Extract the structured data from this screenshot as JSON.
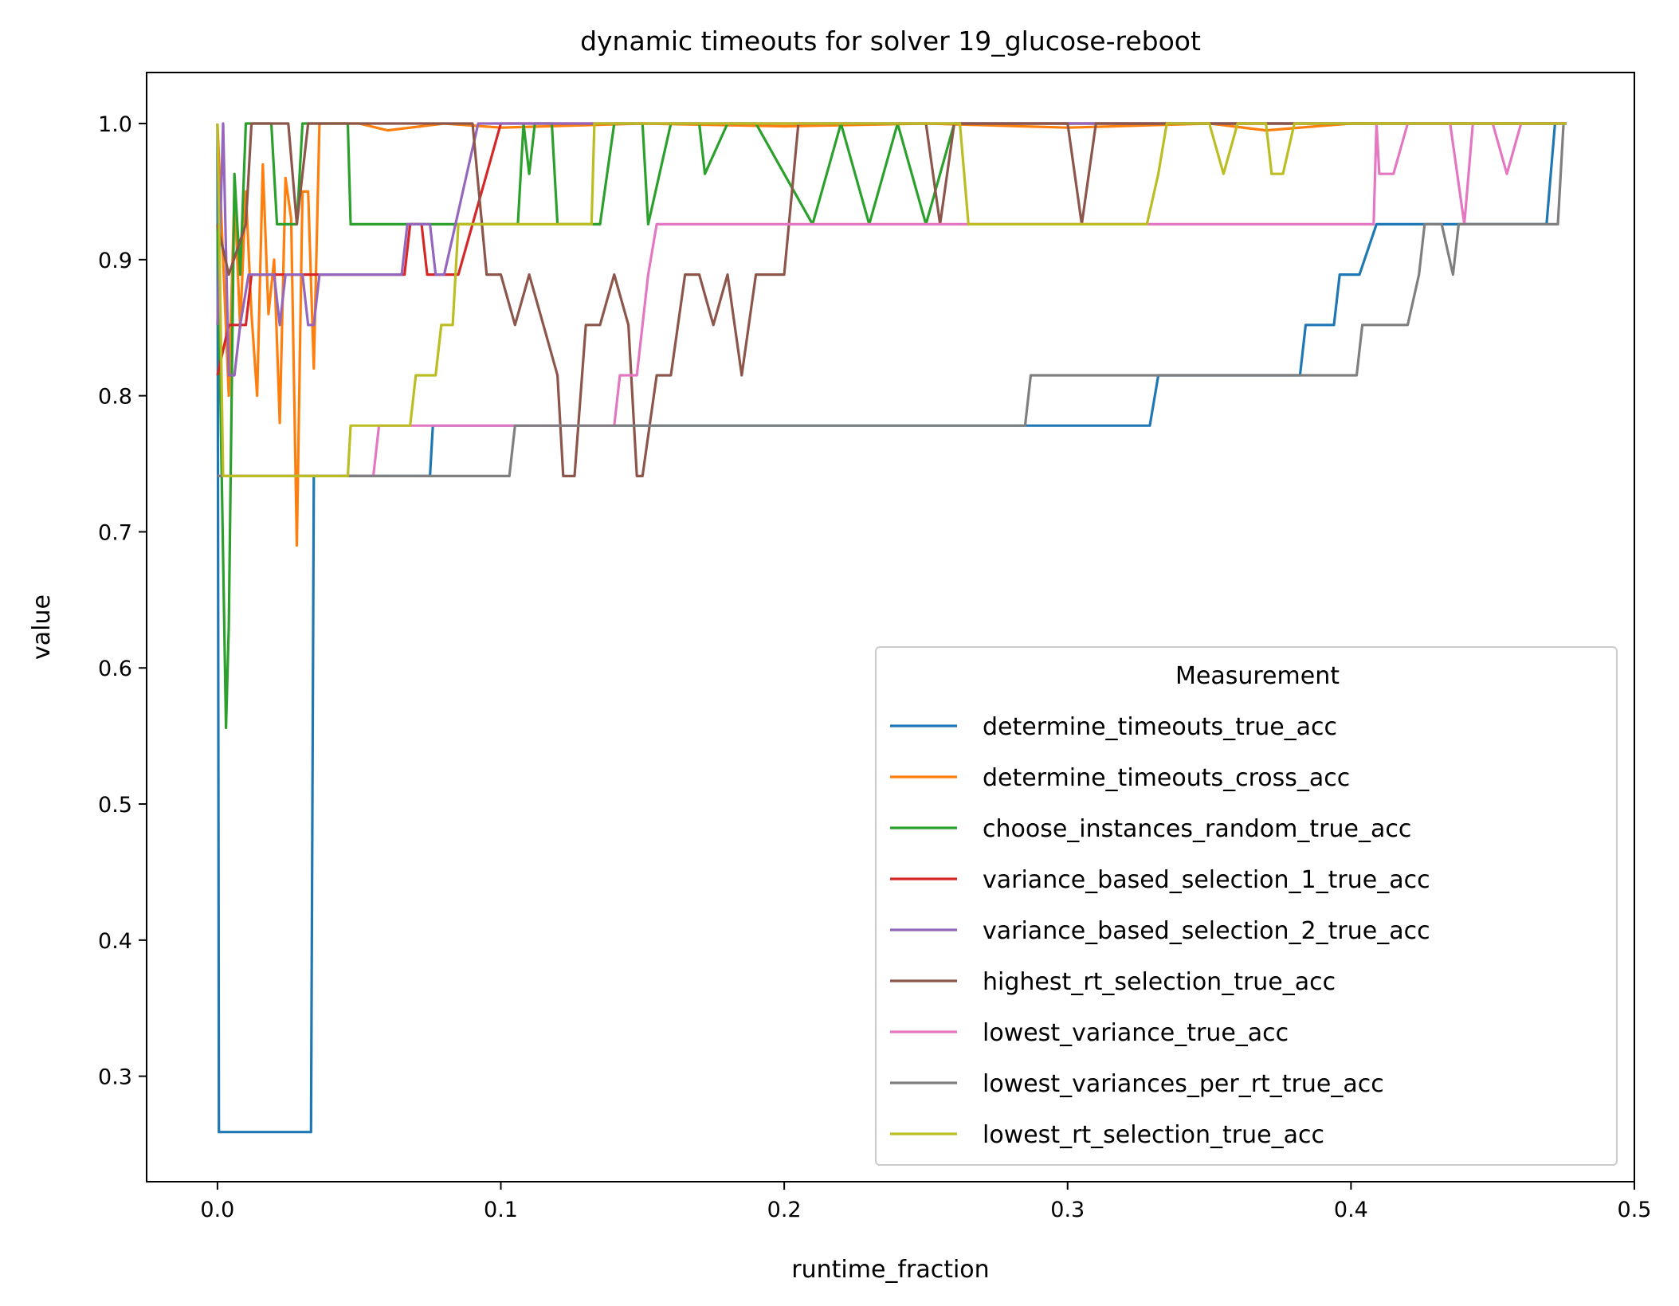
{
  "chart_data": {
    "type": "line",
    "title": "dynamic timeouts for solver 19_glucose-reboot",
    "xlabel": "runtime_fraction",
    "ylabel": "value",
    "xlim": [
      -0.025,
      0.5
    ],
    "ylim": [
      0.2225,
      1.0375
    ],
    "xticks": [
      "0.0",
      "0.1",
      "0.2",
      "0.3",
      "0.4",
      "0.5"
    ],
    "yticks": [
      "0.3",
      "0.4",
      "0.5",
      "0.6",
      "0.7",
      "0.8",
      "0.9",
      "1.0"
    ],
    "grid": false,
    "legend": {
      "title": "Measurement",
      "placement": "lower right"
    },
    "series": [
      {
        "name": "determine_timeouts_true_acc",
        "color": "#1f77b4",
        "points": [
          [
            0,
            1.0
          ],
          [
            0.0005,
            0.259
          ],
          [
            0.033,
            0.259
          ],
          [
            0.034,
            0.741
          ],
          [
            0.075,
            0.741
          ],
          [
            0.076,
            0.778
          ],
          [
            0.329,
            0.778
          ],
          [
            0.332,
            0.815
          ],
          [
            0.382,
            0.815
          ],
          [
            0.384,
            0.852
          ],
          [
            0.394,
            0.852
          ],
          [
            0.396,
            0.889
          ],
          [
            0.403,
            0.889
          ],
          [
            0.409,
            0.926
          ],
          [
            0.469,
            0.926
          ],
          [
            0.472,
            1.0
          ],
          [
            0.476,
            1.0
          ]
        ]
      },
      {
        "name": "determine_timeouts_cross_acc",
        "color": "#ff7f0e",
        "points": [
          [
            0,
            1.0
          ],
          [
            0.002,
            0.9
          ],
          [
            0.004,
            0.8
          ],
          [
            0.006,
            0.95
          ],
          [
            0.008,
            0.85
          ],
          [
            0.01,
            0.95
          ],
          [
            0.012,
            0.86
          ],
          [
            0.014,
            0.8
          ],
          [
            0.016,
            0.97
          ],
          [
            0.018,
            0.86
          ],
          [
            0.02,
            0.9
          ],
          [
            0.022,
            0.78
          ],
          [
            0.024,
            0.96
          ],
          [
            0.026,
            0.93
          ],
          [
            0.028,
            0.69
          ],
          [
            0.03,
            0.95
          ],
          [
            0.032,
            0.95
          ],
          [
            0.034,
            0.82
          ],
          [
            0.036,
            1.0
          ],
          [
            0.05,
            1.0
          ],
          [
            0.06,
            0.995
          ],
          [
            0.08,
            1.0
          ],
          [
            0.1,
            0.997
          ],
          [
            0.15,
            1.0
          ],
          [
            0.2,
            0.998
          ],
          [
            0.25,
            1.0
          ],
          [
            0.3,
            0.997
          ],
          [
            0.35,
            1.0
          ],
          [
            0.37,
            0.995
          ],
          [
            0.4,
            1.0
          ],
          [
            0.476,
            1.0
          ]
        ]
      },
      {
        "name": "choose_instances_random_true_acc",
        "color": "#2ca02c",
        "points": [
          [
            0,
            0.926
          ],
          [
            0.003,
            0.556
          ],
          [
            0.004,
            0.63
          ],
          [
            0.006,
            0.963
          ],
          [
            0.008,
            0.889
          ],
          [
            0.01,
            1.0
          ],
          [
            0.019,
            1.0
          ],
          [
            0.021,
            0.926
          ],
          [
            0.028,
            0.926
          ],
          [
            0.03,
            1.0
          ],
          [
            0.046,
            1.0
          ],
          [
            0.047,
            0.926
          ],
          [
            0.106,
            0.926
          ],
          [
            0.108,
            1.0
          ],
          [
            0.11,
            0.963
          ],
          [
            0.112,
            1.0
          ],
          [
            0.118,
            1.0
          ],
          [
            0.12,
            0.926
          ],
          [
            0.135,
            0.926
          ],
          [
            0.14,
            1.0
          ],
          [
            0.15,
            1.0
          ],
          [
            0.152,
            0.926
          ],
          [
            0.16,
            1.0
          ],
          [
            0.17,
            1.0
          ],
          [
            0.172,
            0.963
          ],
          [
            0.18,
            1.0
          ],
          [
            0.19,
            1.0
          ],
          [
            0.2,
            0.963
          ],
          [
            0.21,
            0.926
          ],
          [
            0.22,
            1.0
          ],
          [
            0.23,
            0.926
          ],
          [
            0.24,
            1.0
          ],
          [
            0.25,
            0.926
          ],
          [
            0.26,
            1.0
          ],
          [
            0.476,
            1.0
          ]
        ]
      },
      {
        "name": "variance_based_selection_1_true_acc",
        "color": "#d62728",
        "points": [
          [
            0,
            0.815
          ],
          [
            0.004,
            0.852
          ],
          [
            0.01,
            0.852
          ],
          [
            0.012,
            0.889
          ],
          [
            0.066,
            0.889
          ],
          [
            0.068,
            0.926
          ],
          [
            0.072,
            0.926
          ],
          [
            0.074,
            0.889
          ],
          [
            0.085,
            0.889
          ],
          [
            0.09,
            0.926
          ],
          [
            0.1,
            1.0
          ],
          [
            0.476,
            1.0
          ]
        ]
      },
      {
        "name": "variance_based_selection_2_true_acc",
        "color": "#9467bd",
        "points": [
          [
            0,
            0.852
          ],
          [
            0.002,
            1.0
          ],
          [
            0.004,
            0.815
          ],
          [
            0.006,
            0.815
          ],
          [
            0.008,
            0.852
          ],
          [
            0.011,
            0.889
          ],
          [
            0.02,
            0.889
          ],
          [
            0.022,
            0.852
          ],
          [
            0.024,
            0.889
          ],
          [
            0.03,
            0.889
          ],
          [
            0.032,
            0.852
          ],
          [
            0.034,
            0.852
          ],
          [
            0.036,
            0.889
          ],
          [
            0.065,
            0.889
          ],
          [
            0.067,
            0.926
          ],
          [
            0.075,
            0.926
          ],
          [
            0.077,
            0.889
          ],
          [
            0.08,
            0.889
          ],
          [
            0.088,
            0.963
          ],
          [
            0.092,
            1.0
          ],
          [
            0.476,
            1.0
          ]
        ]
      },
      {
        "name": "highest_rt_selection_true_acc",
        "color": "#8c564b",
        "points": [
          [
            0,
            0.926
          ],
          [
            0.004,
            0.889
          ],
          [
            0.01,
            0.926
          ],
          [
            0.012,
            1.0
          ],
          [
            0.025,
            1.0
          ],
          [
            0.028,
            0.926
          ],
          [
            0.032,
            1.0
          ],
          [
            0.09,
            1.0
          ],
          [
            0.095,
            0.889
          ],
          [
            0.1,
            0.889
          ],
          [
            0.105,
            0.852
          ],
          [
            0.11,
            0.889
          ],
          [
            0.115,
            0.852
          ],
          [
            0.12,
            0.815
          ],
          [
            0.122,
            0.741
          ],
          [
            0.126,
            0.741
          ],
          [
            0.13,
            0.852
          ],
          [
            0.135,
            0.852
          ],
          [
            0.14,
            0.889
          ],
          [
            0.145,
            0.852
          ],
          [
            0.148,
            0.741
          ],
          [
            0.15,
            0.741
          ],
          [
            0.155,
            0.815
          ],
          [
            0.16,
            0.815
          ],
          [
            0.165,
            0.889
          ],
          [
            0.17,
            0.889
          ],
          [
            0.175,
            0.852
          ],
          [
            0.18,
            0.889
          ],
          [
            0.185,
            0.815
          ],
          [
            0.19,
            0.889
          ],
          [
            0.2,
            0.889
          ],
          [
            0.205,
            1.0
          ],
          [
            0.25,
            1.0
          ],
          [
            0.255,
            0.926
          ],
          [
            0.26,
            1.0
          ],
          [
            0.3,
            1.0
          ],
          [
            0.305,
            0.926
          ],
          [
            0.31,
            1.0
          ],
          [
            0.476,
            1.0
          ]
        ]
      },
      {
        "name": "lowest_variance_true_acc",
        "color": "#e377c2",
        "points": [
          [
            0,
            0.741
          ],
          [
            0.055,
            0.741
          ],
          [
            0.057,
            0.778
          ],
          [
            0.14,
            0.778
          ],
          [
            0.142,
            0.815
          ],
          [
            0.148,
            0.815
          ],
          [
            0.15,
            0.852
          ],
          [
            0.152,
            0.889
          ],
          [
            0.155,
            0.926
          ],
          [
            0.408,
            0.926
          ],
          [
            0.409,
            1.0
          ],
          [
            0.41,
            0.963
          ],
          [
            0.415,
            0.963
          ],
          [
            0.42,
            1.0
          ],
          [
            0.435,
            1.0
          ],
          [
            0.44,
            0.926
          ],
          [
            0.443,
            1.0
          ],
          [
            0.45,
            1.0
          ],
          [
            0.455,
            0.963
          ],
          [
            0.46,
            1.0
          ],
          [
            0.476,
            1.0
          ]
        ]
      },
      {
        "name": "lowest_variances_per_rt_true_acc",
        "color": "#7f7f7f",
        "points": [
          [
            0,
            0.741
          ],
          [
            0.103,
            0.741
          ],
          [
            0.105,
            0.778
          ],
          [
            0.285,
            0.778
          ],
          [
            0.287,
            0.815
          ],
          [
            0.402,
            0.815
          ],
          [
            0.404,
            0.852
          ],
          [
            0.42,
            0.852
          ],
          [
            0.424,
            0.889
          ],
          [
            0.426,
            0.926
          ],
          [
            0.432,
            0.926
          ],
          [
            0.436,
            0.889
          ],
          [
            0.438,
            0.926
          ],
          [
            0.473,
            0.926
          ],
          [
            0.475,
            1.0
          ],
          [
            0.476,
            1.0
          ]
        ]
      },
      {
        "name": "lowest_rt_selection_true_acc",
        "color": "#bcbd22",
        "points": [
          [
            0,
            1.0
          ],
          [
            0.002,
            0.741
          ],
          [
            0.046,
            0.741
          ],
          [
            0.047,
            0.778
          ],
          [
            0.068,
            0.778
          ],
          [
            0.07,
            0.815
          ],
          [
            0.077,
            0.815
          ],
          [
            0.079,
            0.852
          ],
          [
            0.083,
            0.852
          ],
          [
            0.085,
            0.926
          ],
          [
            0.132,
            0.926
          ],
          [
            0.133,
            1.0
          ],
          [
            0.262,
            1.0
          ],
          [
            0.265,
            0.926
          ],
          [
            0.328,
            0.926
          ],
          [
            0.332,
            0.963
          ],
          [
            0.335,
            1.0
          ],
          [
            0.35,
            1.0
          ],
          [
            0.355,
            0.963
          ],
          [
            0.36,
            1.0
          ],
          [
            0.37,
            1.0
          ],
          [
            0.372,
            0.963
          ],
          [
            0.376,
            0.963
          ],
          [
            0.38,
            1.0
          ],
          [
            0.476,
            1.0
          ]
        ]
      }
    ]
  }
}
